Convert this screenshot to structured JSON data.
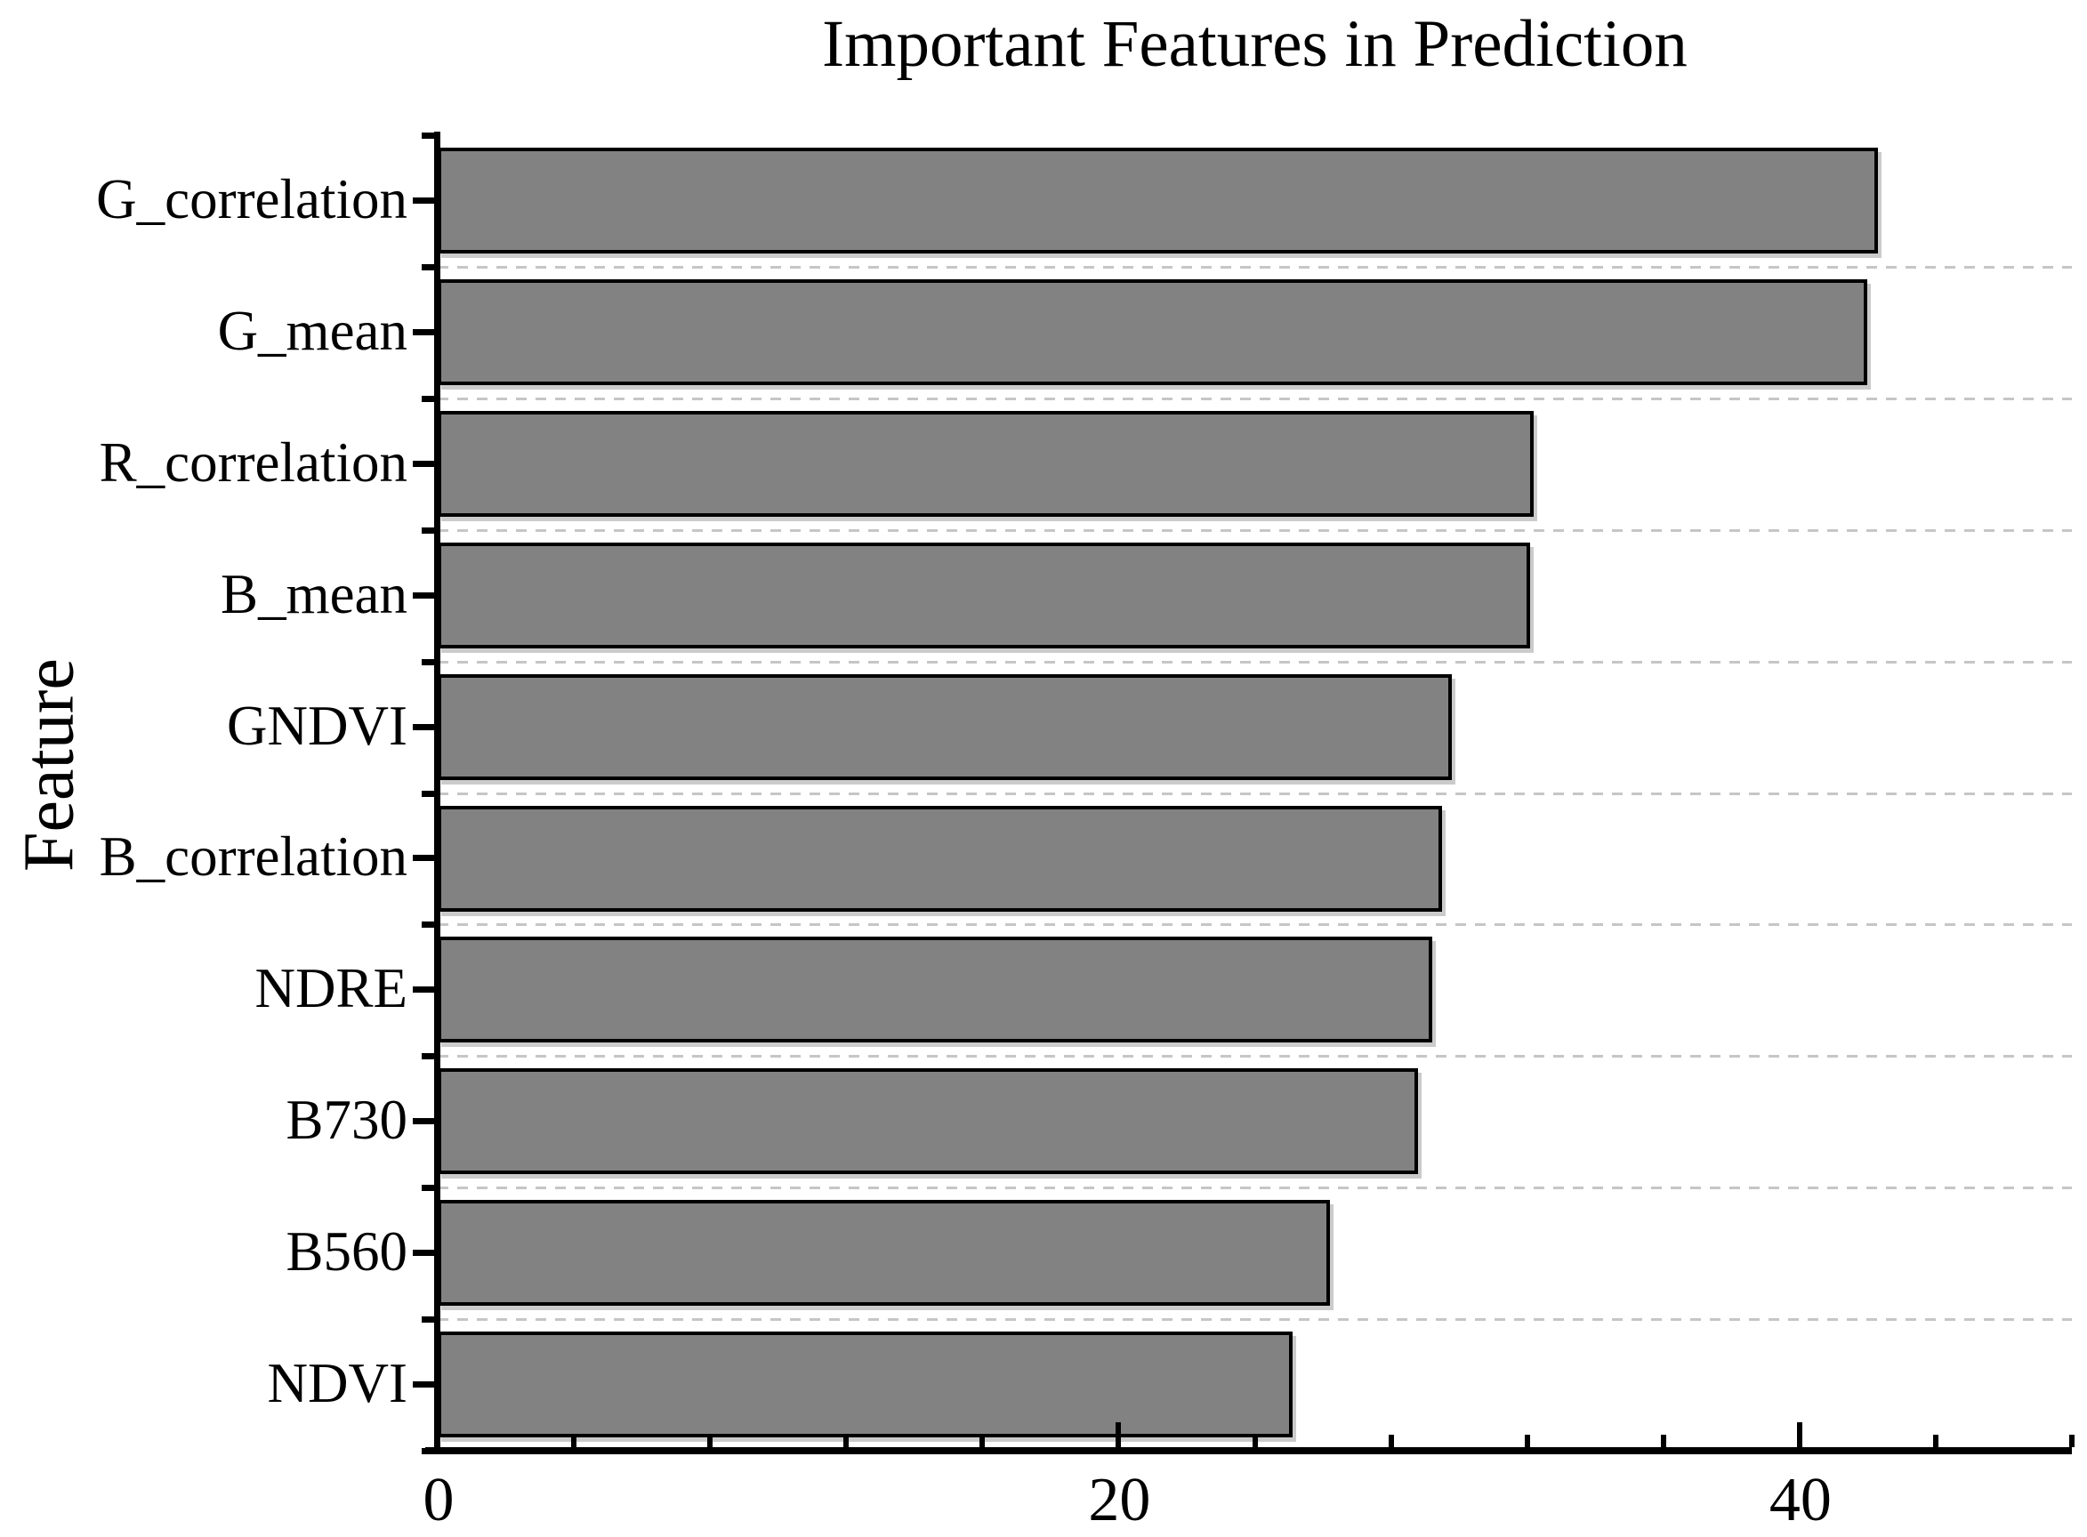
{
  "title": "Important Features in Prediction",
  "y_axis_title": "Feature",
  "colors": {
    "bar_fill": "#828282",
    "bar_border": "#000000",
    "axis": "#000000",
    "gridline": "#c6c6c6",
    "background": "#ffffff",
    "text": "#000000"
  },
  "chart_data": {
    "type": "bar",
    "orientation": "horizontal",
    "title": "Important Features in Prediction",
    "xlabel": "",
    "ylabel": "Feature",
    "categories": [
      "G_correlation",
      "G_mean",
      "R_correlation",
      "B_mean",
      "GNDVI",
      "B_correlation",
      "NDRE",
      "B730",
      "B560",
      "NDVI"
    ],
    "values": [
      42.3,
      42.0,
      32.2,
      32.1,
      29.8,
      29.5,
      29.2,
      28.8,
      26.2,
      25.1
    ],
    "xlim": [
      0,
      48
    ],
    "x_major_ticks": [
      0,
      20,
      40
    ],
    "x_major_tick_labels": [
      "0",
      "20",
      "40"
    ],
    "x_minor_tick_step": 4,
    "grid": "horizontal dashed lines at category boundaries",
    "legend": "none"
  }
}
